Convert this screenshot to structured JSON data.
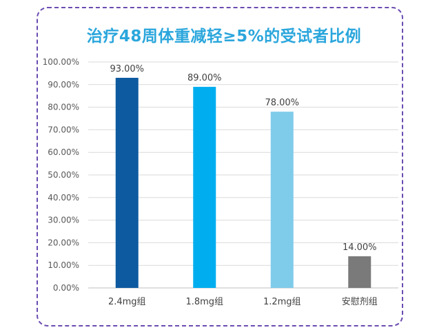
{
  "chart_data": {
    "type": "bar",
    "title": "治疗48周体重减轻≥5%的受试者比例",
    "categories": [
      "2.4mg组",
      "1.8mg组",
      "1.2mg组",
      "安慰剂组"
    ],
    "values": [
      93.0,
      89.0,
      78.0,
      14.0
    ],
    "data_labels": [
      "93.00%",
      "89.00%",
      "78.00%",
      "14.00%"
    ],
    "bar_colors": [
      "#0e5aa0",
      "#00aeef",
      "#7fcbea",
      "#7a7a7a"
    ],
    "ylim": [
      0,
      100
    ],
    "yticks": [
      0,
      10,
      20,
      30,
      40,
      50,
      60,
      70,
      80,
      90,
      100
    ],
    "ytick_labels": [
      "0.00%",
      "10.00%",
      "20.00%",
      "30.00%",
      "40.00%",
      "50.00%",
      "60.00%",
      "70.00%",
      "80.00%",
      "90.00%",
      "100.00%"
    ],
    "grid": true,
    "legend": "none",
    "title_color": "#2aa6dc",
    "frame_color": "#6a4ab0"
  }
}
